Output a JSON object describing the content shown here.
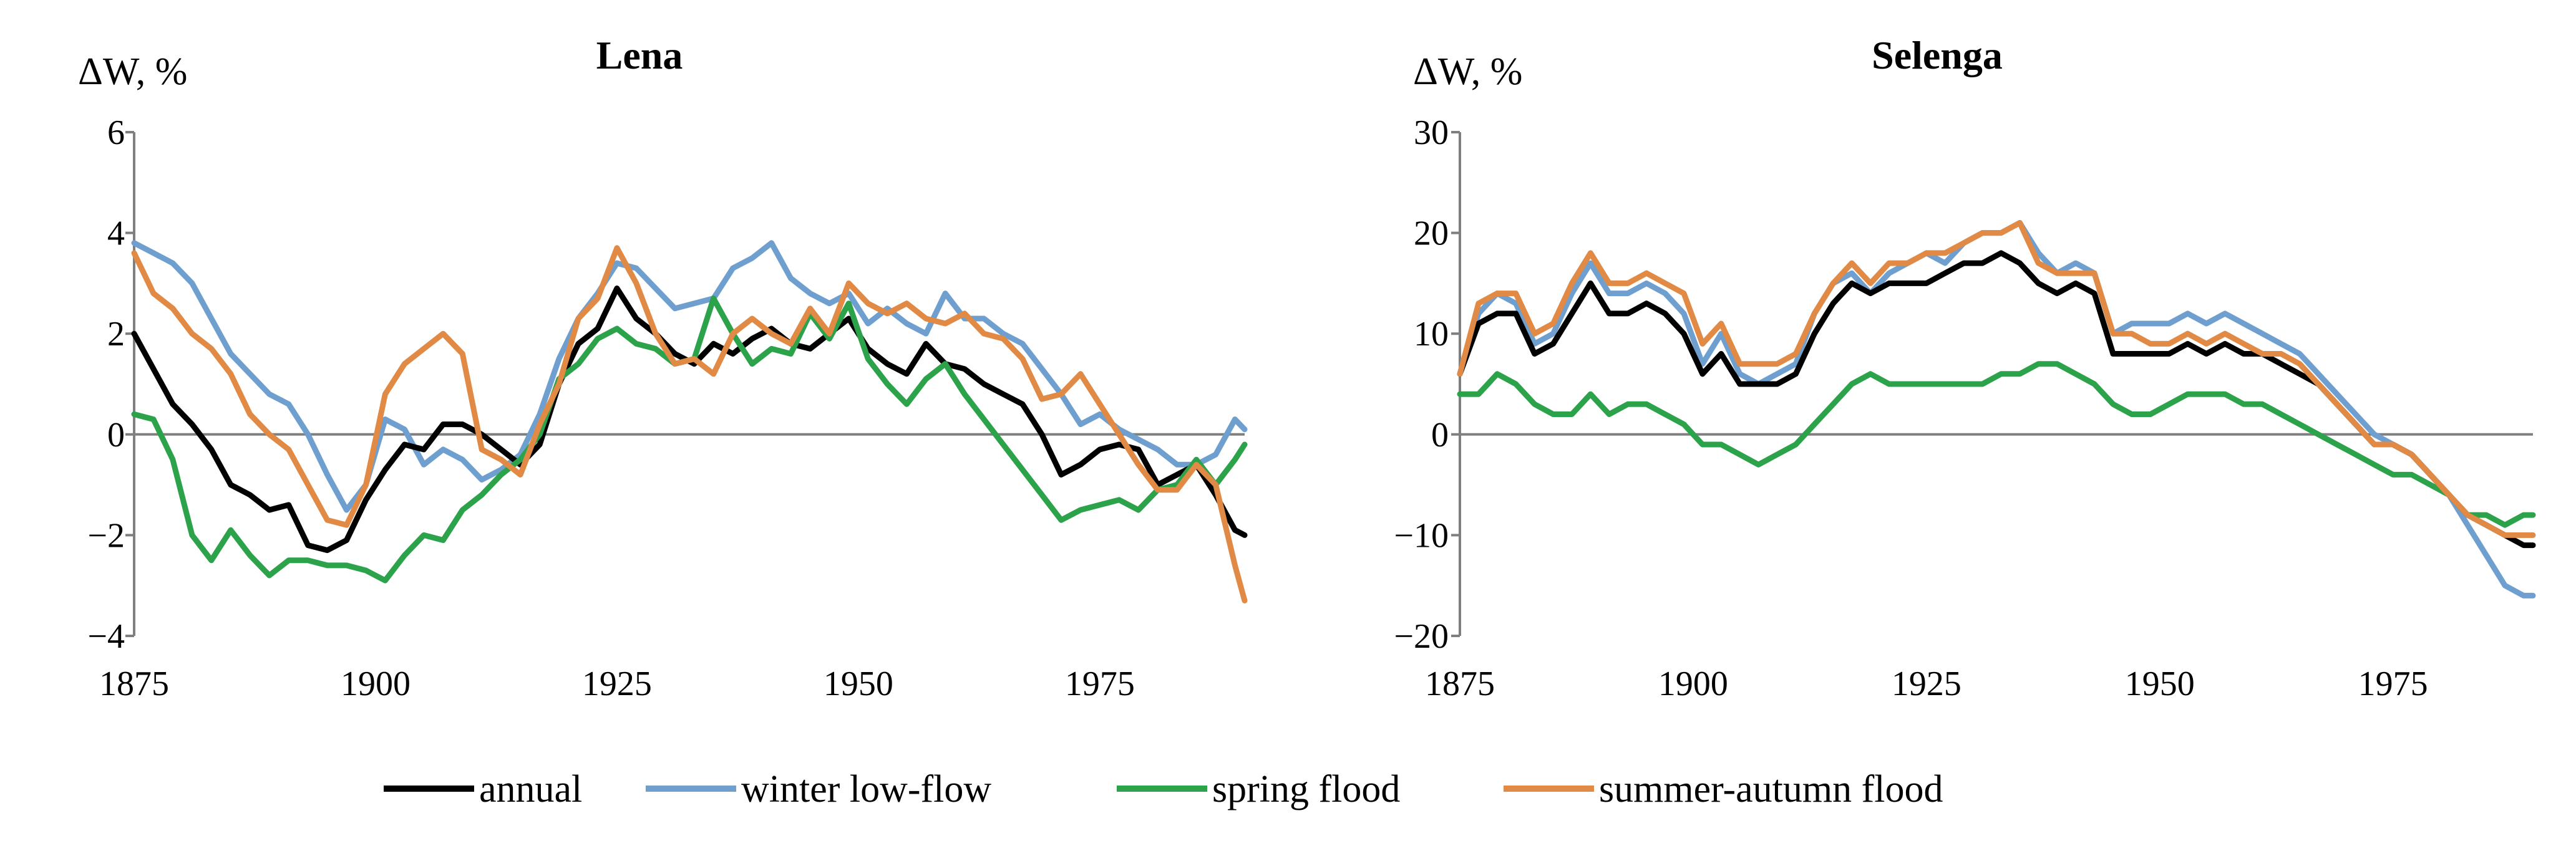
{
  "chart_data": [
    {
      "type": "line",
      "title": "Lena",
      "ylabel": "ΔW, %",
      "xlabel": "",
      "xlim": [
        1875,
        1990
      ],
      "ylim": [
        -4,
        6
      ],
      "yticks": [
        -4,
        -2,
        0,
        2,
        4,
        6
      ],
      "xticks": [
        1875,
        1900,
        1925,
        1950,
        1975
      ],
      "series": [
        {
          "name": "winter low-flow",
          "key": "winter",
          "x": [
            1875,
            1877,
            1879,
            1881,
            1883,
            1885,
            1887,
            1889,
            1891,
            1893,
            1895,
            1897,
            1899,
            1901,
            1903,
            1905,
            1907,
            1909,
            1911,
            1913,
            1915,
            1917,
            1919,
            1921,
            1923,
            1925,
            1927,
            1929,
            1931,
            1933,
            1935,
            1937,
            1939,
            1941,
            1943,
            1945,
            1947,
            1949,
            1951,
            1953,
            1955,
            1957,
            1959,
            1961,
            1963,
            1965,
            1967,
            1969,
            1971,
            1973,
            1975,
            1977,
            1979,
            1981,
            1983,
            1985,
            1987,
            1989,
            1990
          ],
          "values": [
            3.8,
            3.6,
            3.4,
            3.0,
            2.3,
            1.6,
            1.2,
            0.8,
            0.6,
            0.0,
            -0.8,
            -1.5,
            -1.0,
            0.3,
            0.1,
            -0.6,
            -0.3,
            -0.5,
            -0.9,
            -0.7,
            -0.4,
            0.4,
            1.5,
            2.3,
            2.8,
            3.4,
            3.3,
            2.9,
            2.5,
            2.6,
            2.7,
            3.3,
            3.5,
            3.8,
            3.1,
            2.8,
            2.6,
            2.8,
            2.2,
            2.5,
            2.2,
            2.0,
            2.8,
            2.3,
            2.3,
            2.0,
            1.8,
            1.3,
            0.8,
            0.2,
            0.4,
            0.1,
            -0.1,
            -0.3,
            -0.6,
            -0.6,
            -0.4,
            0.3,
            0.1
          ]
        },
        {
          "name": "annual",
          "key": "annual",
          "x": [
            1875,
            1877,
            1879,
            1881,
            1883,
            1885,
            1887,
            1889,
            1891,
            1893,
            1895,
            1897,
            1899,
            1901,
            1903,
            1905,
            1907,
            1909,
            1911,
            1913,
            1915,
            1917,
            1919,
            1921,
            1923,
            1925,
            1927,
            1929,
            1931,
            1933,
            1935,
            1937,
            1939,
            1941,
            1943,
            1945,
            1947,
            1949,
            1951,
            1953,
            1955,
            1957,
            1959,
            1961,
            1963,
            1965,
            1967,
            1969,
            1971,
            1973,
            1975,
            1977,
            1979,
            1981,
            1983,
            1985,
            1987,
            1989,
            1990
          ],
          "values": [
            2.0,
            1.3,
            0.6,
            0.2,
            -0.3,
            -1.0,
            -1.2,
            -1.5,
            -1.4,
            -2.2,
            -2.3,
            -2.1,
            -1.3,
            -0.7,
            -0.2,
            -0.3,
            0.2,
            0.2,
            0.0,
            -0.3,
            -0.6,
            -0.2,
            1.0,
            1.8,
            2.1,
            2.9,
            2.3,
            2.0,
            1.6,
            1.4,
            1.8,
            1.6,
            1.9,
            2.1,
            1.8,
            1.7,
            2.0,
            2.3,
            1.7,
            1.4,
            1.2,
            1.8,
            1.4,
            1.3,
            1.0,
            0.8,
            0.6,
            0.0,
            -0.8,
            -0.6,
            -0.3,
            -0.2,
            -0.3,
            -1.0,
            -0.8,
            -0.6,
            -1.2,
            -1.9,
            -2.0
          ]
        },
        {
          "name": "spring flood",
          "key": "spring",
          "x": [
            1875,
            1877,
            1879,
            1881,
            1883,
            1885,
            1887,
            1889,
            1891,
            1893,
            1895,
            1897,
            1899,
            1901,
            1903,
            1905,
            1907,
            1909,
            1911,
            1913,
            1915,
            1917,
            1919,
            1921,
            1923,
            1925,
            1927,
            1929,
            1931,
            1933,
            1935,
            1937,
            1939,
            1941,
            1943,
            1945,
            1947,
            1949,
            1951,
            1953,
            1955,
            1957,
            1959,
            1961,
            1963,
            1965,
            1967,
            1969,
            1971,
            1973,
            1975,
            1977,
            1979,
            1981,
            1983,
            1985,
            1987,
            1989,
            1990
          ],
          "values": [
            0.4,
            0.3,
            -0.5,
            -2.0,
            -2.5,
            -1.9,
            -2.4,
            -2.8,
            -2.5,
            -2.5,
            -2.6,
            -2.6,
            -2.7,
            -2.9,
            -2.4,
            -2.0,
            -2.1,
            -1.5,
            -1.2,
            -0.8,
            -0.5,
            0.0,
            1.1,
            1.4,
            1.9,
            2.1,
            1.8,
            1.7,
            1.4,
            1.5,
            2.7,
            2.0,
            1.4,
            1.7,
            1.6,
            2.4,
            1.9,
            2.6,
            1.5,
            1.0,
            0.6,
            1.1,
            1.4,
            0.8,
            0.3,
            -0.2,
            -0.7,
            -1.2,
            -1.7,
            -1.5,
            -1.4,
            -1.3,
            -1.5,
            -1.1,
            -1.0,
            -0.5,
            -1.0,
            -0.5,
            -0.2
          ]
        },
        {
          "name": "summer-autumn flood",
          "key": "summer",
          "x": [
            1875,
            1877,
            1879,
            1881,
            1883,
            1885,
            1887,
            1889,
            1891,
            1893,
            1895,
            1897,
            1899,
            1901,
            1903,
            1905,
            1907,
            1909,
            1911,
            1913,
            1915,
            1917,
            1919,
            1921,
            1923,
            1925,
            1927,
            1929,
            1931,
            1933,
            1935,
            1937,
            1939,
            1941,
            1943,
            1945,
            1947,
            1949,
            1951,
            1953,
            1955,
            1957,
            1959,
            1961,
            1963,
            1965,
            1967,
            1969,
            1971,
            1973,
            1975,
            1977,
            1979,
            1981,
            1983,
            1985,
            1987,
            1989,
            1990
          ],
          "values": [
            3.6,
            2.8,
            2.5,
            2.0,
            1.7,
            1.2,
            0.4,
            0.0,
            -0.3,
            -1.0,
            -1.7,
            -1.8,
            -1.0,
            0.8,
            1.4,
            1.7,
            2.0,
            1.6,
            -0.3,
            -0.5,
            -0.8,
            0.2,
            1.0,
            2.3,
            2.7,
            3.7,
            3.0,
            2.0,
            1.4,
            1.5,
            1.2,
            2.0,
            2.3,
            2.0,
            1.8,
            2.5,
            2.0,
            3.0,
            2.6,
            2.4,
            2.6,
            2.3,
            2.2,
            2.4,
            2.0,
            1.9,
            1.5,
            0.7,
            0.8,
            1.2,
            0.6,
            0.0,
            -0.6,
            -1.1,
            -1.1,
            -0.6,
            -1.0,
            -2.6,
            -3.3
          ]
        }
      ]
    },
    {
      "type": "line",
      "title": "Selenga",
      "ylabel": "ΔW, %",
      "xlabel": "",
      "xlim": [
        1875,
        1990
      ],
      "ylim": [
        -20,
        30
      ],
      "yticks": [
        -20,
        -10,
        0,
        10,
        20,
        30
      ],
      "xticks": [
        1875,
        1900,
        1925,
        1950,
        1975
      ],
      "series": [
        {
          "name": "winter low-flow",
          "key": "winter",
          "x": [
            1875,
            1877,
            1879,
            1881,
            1883,
            1885,
            1887,
            1889,
            1891,
            1893,
            1895,
            1897,
            1899,
            1901,
            1903,
            1905,
            1907,
            1909,
            1911,
            1913,
            1915,
            1917,
            1919,
            1921,
            1923,
            1925,
            1927,
            1929,
            1931,
            1933,
            1935,
            1937,
            1939,
            1941,
            1943,
            1945,
            1947,
            1949,
            1951,
            1953,
            1955,
            1957,
            1959,
            1961,
            1963,
            1965,
            1967,
            1969,
            1971,
            1973,
            1975,
            1977,
            1979,
            1981,
            1983,
            1985,
            1987,
            1989,
            1990
          ],
          "values": [
            6,
            12,
            14,
            13,
            9,
            10,
            14,
            17,
            14,
            14,
            15,
            14,
            12,
            7,
            10,
            6,
            5,
            6,
            7,
            12,
            15,
            16,
            14,
            16,
            17,
            18,
            17,
            19,
            20,
            20,
            21,
            18,
            16,
            17,
            16,
            10,
            11,
            11,
            11,
            12,
            11,
            12,
            11,
            10,
            9,
            8,
            6,
            4,
            2,
            0,
            -1,
            -2,
            -4,
            -6,
            -9,
            -12,
            -15,
            -16,
            -16
          ]
        },
        {
          "name": "annual",
          "key": "annual",
          "x": [
            1875,
            1877,
            1879,
            1881,
            1883,
            1885,
            1887,
            1889,
            1891,
            1893,
            1895,
            1897,
            1899,
            1901,
            1903,
            1905,
            1907,
            1909,
            1911,
            1913,
            1915,
            1917,
            1919,
            1921,
            1923,
            1925,
            1927,
            1929,
            1931,
            1933,
            1935,
            1937,
            1939,
            1941,
            1943,
            1945,
            1947,
            1949,
            1951,
            1953,
            1955,
            1957,
            1959,
            1961,
            1963,
            1965,
            1967,
            1969,
            1971,
            1973,
            1975,
            1977,
            1979,
            1981,
            1983,
            1985,
            1987,
            1989,
            1990
          ],
          "values": [
            6,
            11,
            12,
            12,
            8,
            9,
            12,
            15,
            12,
            12,
            13,
            12,
            10,
            6,
            8,
            5,
            5,
            5,
            6,
            10,
            13,
            15,
            14,
            15,
            15,
            15,
            16,
            17,
            17,
            18,
            17,
            15,
            14,
            15,
            14,
            8,
            8,
            8,
            8,
            9,
            8,
            9,
            8,
            8,
            7,
            6,
            5,
            3,
            1,
            -1,
            -1,
            -2,
            -4,
            -6,
            -8,
            -9,
            -10,
            -11,
            -11
          ]
        },
        {
          "name": "spring flood",
          "key": "spring",
          "x": [
            1875,
            1877,
            1879,
            1881,
            1883,
            1885,
            1887,
            1889,
            1891,
            1893,
            1895,
            1897,
            1899,
            1901,
            1903,
            1905,
            1907,
            1909,
            1911,
            1913,
            1915,
            1917,
            1919,
            1921,
            1923,
            1925,
            1927,
            1929,
            1931,
            1933,
            1935,
            1937,
            1939,
            1941,
            1943,
            1945,
            1947,
            1949,
            1951,
            1953,
            1955,
            1957,
            1959,
            1961,
            1963,
            1965,
            1967,
            1969,
            1971,
            1973,
            1975,
            1977,
            1979,
            1981,
            1983,
            1985,
            1987,
            1989,
            1990
          ],
          "values": [
            4,
            4,
            6,
            5,
            3,
            2,
            2,
            4,
            2,
            3,
            3,
            2,
            1,
            -1,
            -1,
            -2,
            -3,
            -2,
            -1,
            1,
            3,
            5,
            6,
            5,
            5,
            5,
            5,
            5,
            5,
            6,
            6,
            7,
            7,
            6,
            5,
            3,
            2,
            2,
            3,
            4,
            4,
            4,
            3,
            3,
            2,
            1,
            0,
            -1,
            -2,
            -3,
            -4,
            -4,
            -5,
            -6,
            -8,
            -8,
            -9,
            -8,
            -8
          ]
        },
        {
          "name": "summer-autumn flood",
          "key": "summer",
          "x": [
            1875,
            1877,
            1879,
            1881,
            1883,
            1885,
            1887,
            1889,
            1891,
            1893,
            1895,
            1897,
            1899,
            1901,
            1903,
            1905,
            1907,
            1909,
            1911,
            1913,
            1915,
            1917,
            1919,
            1921,
            1923,
            1925,
            1927,
            1929,
            1931,
            1933,
            1935,
            1937,
            1939,
            1941,
            1943,
            1945,
            1947,
            1949,
            1951,
            1953,
            1955,
            1957,
            1959,
            1961,
            1963,
            1965,
            1967,
            1969,
            1971,
            1973,
            1975,
            1977,
            1979,
            1981,
            1983,
            1985,
            1987,
            1989,
            1990
          ],
          "values": [
            6,
            13,
            14,
            14,
            10,
            11,
            15,
            18,
            15,
            15,
            16,
            15,
            14,
            9,
            11,
            7,
            7,
            7,
            8,
            12,
            15,
            17,
            15,
            17,
            17,
            18,
            18,
            19,
            20,
            20,
            21,
            17,
            16,
            16,
            16,
            10,
            10,
            9,
            9,
            10,
            9,
            10,
            9,
            8,
            8,
            7,
            5,
            3,
            1,
            -1,
            -1,
            -2,
            -4,
            -6,
            -8,
            -9,
            -10,
            -10,
            -10
          ]
        }
      ]
    }
  ],
  "legend": {
    "position": "bottom-center",
    "items": [
      {
        "key": "annual",
        "label": "annual"
      },
      {
        "key": "winter",
        "label": "winter low-flow"
      },
      {
        "key": "spring",
        "label": "spring flood"
      },
      {
        "key": "summer",
        "label": "summer-autumn flood"
      }
    ]
  },
  "colors": {
    "annual": "#000000",
    "winter": "#6e9fcf",
    "spring": "#2ca24a",
    "summer": "#e08a45"
  }
}
